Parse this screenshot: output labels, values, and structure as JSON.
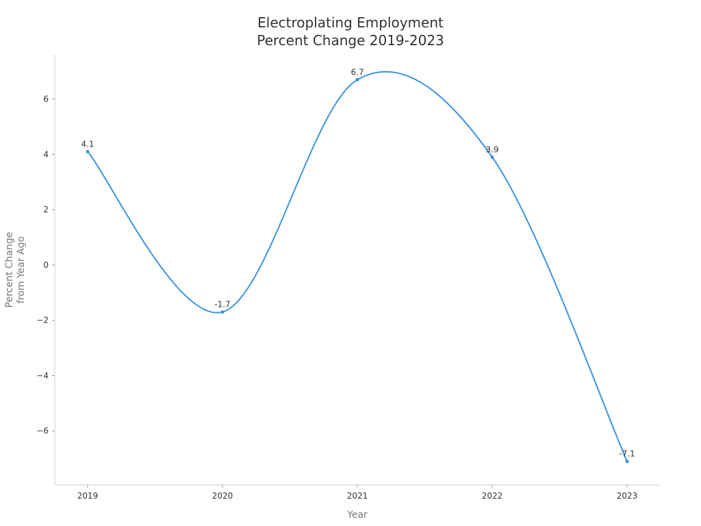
{
  "chart_data": {
    "type": "line",
    "title_lines": [
      "Electroplating Employment",
      "Percent Change 2019-2023"
    ],
    "xlabel": "Year",
    "ylabel_lines": [
      "Percent Change",
      "from Year Ago"
    ],
    "categories": [
      "2019",
      "2020",
      "2021",
      "2022",
      "2023"
    ],
    "series": [
      {
        "values": [
          4.1,
          -1.7,
          6.7,
          3.9,
          -7.1
        ],
        "data_labels": [
          "4.1",
          "-1.7",
          "6.7",
          "3.9",
          "-7.1"
        ]
      }
    ],
    "yticks": [
      -6,
      -4,
      -2,
      0,
      2,
      4,
      6
    ],
    "ytick_labels": [
      "−6",
      "−4",
      "−2",
      "0",
      "2",
      "4",
      "6"
    ],
    "ylim": [
      -7.95,
      7.6
    ],
    "grid": false,
    "legend": "none",
    "line_color": "#3b93e0"
  }
}
